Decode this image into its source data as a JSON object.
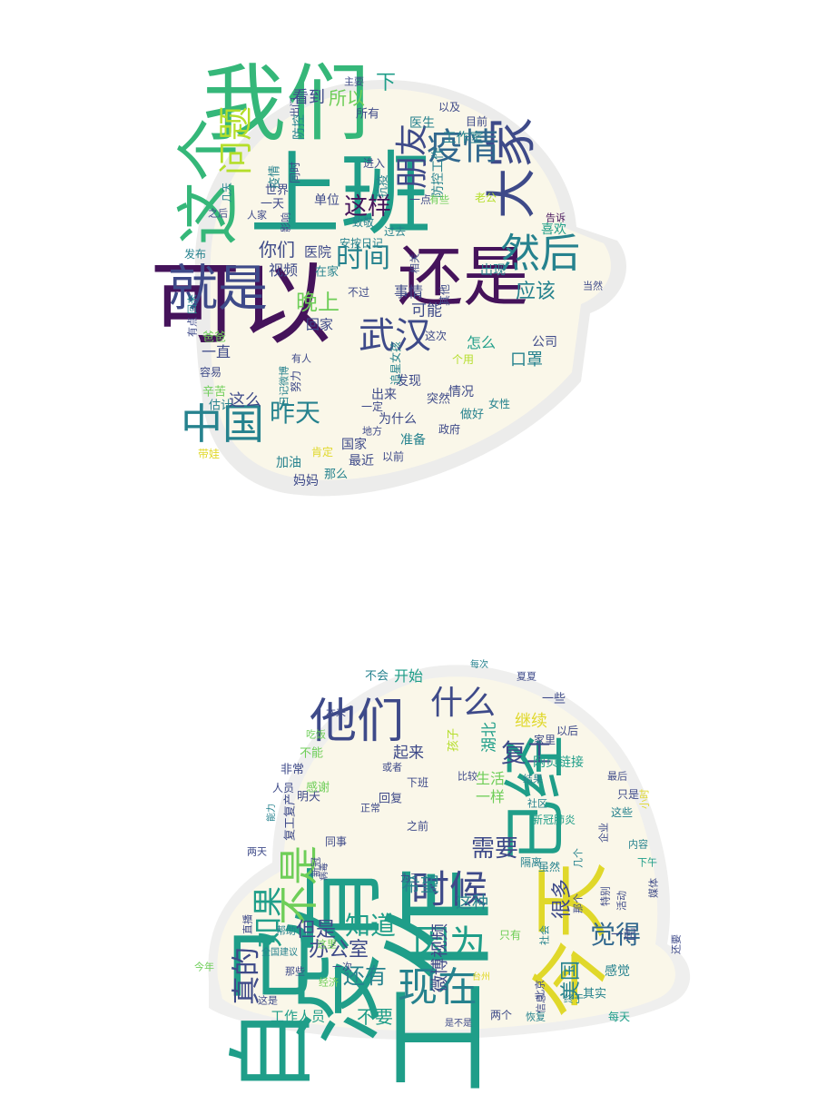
{
  "palette": {
    "dark_purple": "#45135b",
    "indigo": "#3e4a89",
    "blue": "#31688e",
    "teal": "#26828e",
    "sea": "#1f9e89",
    "green": "#35b779",
    "lime": "#6ece58",
    "yellow": "#b5de2b",
    "bright_yellow": "#e0d82a",
    "helmet_fill": "#faf7e9",
    "helmet_shadow": "#e4e4e2"
  },
  "clouds": [
    {
      "name": "top-helmet-cloud",
      "words": [
        {
          "text": "我们",
          "color": "green"
        },
        {
          "text": "上班",
          "color": "sea"
        },
        {
          "text": "可以",
          "color": "dark_purple"
        },
        {
          "text": "这个",
          "color": "green"
        },
        {
          "text": "还是",
          "color": "dark_purple"
        },
        {
          "text": "就是",
          "color": "indigo"
        },
        {
          "text": "大家",
          "color": "indigo"
        },
        {
          "text": "中国",
          "color": "teal"
        },
        {
          "text": "疫情",
          "color": "blue"
        },
        {
          "text": "然后",
          "color": "teal"
        },
        {
          "text": "武汉",
          "color": "indigo"
        },
        {
          "text": "问题",
          "color": "yellow"
        },
        {
          "text": "时间",
          "color": "teal"
        },
        {
          "text": "朋友",
          "color": "indigo"
        },
        {
          "text": "这样",
          "color": "dark_purple"
        },
        {
          "text": "昨天",
          "color": "teal"
        },
        {
          "text": "晚上",
          "color": "lime"
        },
        {
          "text": "所以",
          "color": "lime"
        },
        {
          "text": "下",
          "color": "sea"
        },
        {
          "text": "应该",
          "color": "teal"
        },
        {
          "text": "你们",
          "color": "indigo"
        },
        {
          "text": "看到",
          "color": "indigo"
        },
        {
          "text": "视频",
          "color": "indigo"
        },
        {
          "text": "可能",
          "color": "indigo"
        },
        {
          "text": "事情",
          "color": "indigo"
        },
        {
          "text": "怎么",
          "color": "sea"
        },
        {
          "text": "口罩",
          "color": "teal"
        },
        {
          "text": "一直",
          "color": "indigo"
        },
        {
          "text": "这么",
          "color": "indigo"
        },
        {
          "text": "医院",
          "color": "indigo"
        },
        {
          "text": "单位",
          "color": "indigo"
        },
        {
          "text": "回家",
          "color": "indigo"
        },
        {
          "text": "出现",
          "color": "teal"
        },
        {
          "text": "喜欢",
          "color": "sea"
        },
        {
          "text": "公司",
          "color": "indigo"
        },
        {
          "text": "情况",
          "color": "indigo"
        },
        {
          "text": "发现",
          "color": "indigo"
        },
        {
          "text": "出来",
          "color": "indigo"
        },
        {
          "text": "突然",
          "color": "indigo"
        },
        {
          "text": "为什么",
          "color": "indigo"
        },
        {
          "text": "做好",
          "color": "teal"
        },
        {
          "text": "准备",
          "color": "teal"
        },
        {
          "text": "国家",
          "color": "indigo"
        },
        {
          "text": "加油",
          "color": "teal"
        },
        {
          "text": "妈妈",
          "color": "indigo"
        },
        {
          "text": "那么",
          "color": "teal"
        },
        {
          "text": "最近",
          "color": "indigo"
        },
        {
          "text": "以前",
          "color": "indigo"
        },
        {
          "text": "政府",
          "color": "indigo"
        },
        {
          "text": "女性",
          "color": "teal"
        },
        {
          "text": "工作室",
          "color": "teal"
        },
        {
          "text": "目前",
          "color": "indigo"
        },
        {
          "text": "医生",
          "color": "teal"
        },
        {
          "text": "以及",
          "color": "indigo"
        },
        {
          "text": "所有",
          "color": "indigo"
        },
        {
          "text": "主要",
          "color": "indigo"
        },
        {
          "text": "出门",
          "color": "indigo"
        },
        {
          "text": "世界",
          "color": "indigo"
        },
        {
          "text": "一天",
          "color": "indigo"
        },
        {
          "text": "防控工作",
          "color": "teal"
        },
        {
          "text": "防控",
          "color": "teal"
        },
        {
          "text": "疫情",
          "color": "teal"
        },
        {
          "text": "同时",
          "color": "indigo"
        },
        {
          "text": "进入",
          "color": "indigo"
        },
        {
          "text": "抗疫",
          "color": "teal"
        },
        {
          "text": "一点",
          "color": "indigo"
        },
        {
          "text": "有些",
          "color": "lime"
        },
        {
          "text": "老公",
          "color": "yellow"
        },
        {
          "text": "告诉",
          "color": "dark_purple"
        },
        {
          "text": "致敬",
          "color": "teal"
        },
        {
          "text": "过去",
          "color": "teal"
        },
        {
          "text": "安按日记",
          "color": "teal"
        },
        {
          "text": "相关",
          "color": "indigo"
        },
        {
          "text": "在家",
          "color": "teal"
        },
        {
          "text": "不过",
          "color": "indigo"
        },
        {
          "text": "其他",
          "color": "indigo"
        },
        {
          "text": "这次",
          "color": "indigo"
        },
        {
          "text": "个用",
          "color": "yellow"
        },
        {
          "text": "追星女孩",
          "color": "teal"
        },
        {
          "text": "有人",
          "color": "indigo"
        },
        {
          "text": "努力",
          "color": "indigo"
        },
        {
          "text": "日记微博",
          "color": "teal"
        },
        {
          "text": "一定",
          "color": "indigo"
        },
        {
          "text": "地方",
          "color": "indigo"
        },
        {
          "text": "肯定",
          "color": "bright_yellow"
        },
        {
          "text": "带娃",
          "color": "bright_yellow"
        },
        {
          "text": "估计",
          "color": "teal"
        },
        {
          "text": "辛苦",
          "color": "lime"
        },
        {
          "text": "容易",
          "color": "indigo"
        },
        {
          "text": "爸爸",
          "color": "lime"
        },
        {
          "text": "有点",
          "color": "indigo"
        },
        {
          "text": "回来",
          "color": "teal"
        },
        {
          "text": "发布",
          "color": "teal"
        },
        {
          "text": "之后",
          "color": "indigo"
        },
        {
          "text": "几天",
          "color": "teal"
        },
        {
          "text": "人家",
          "color": "indigo"
        },
        {
          "text": "影响",
          "color": "indigo"
        },
        {
          "text": "当然",
          "color": "indigo"
        }
      ]
    },
    {
      "name": "bottom-helmet-cloud",
      "words": [
        {
          "text": "工作",
          "color": "sea"
        },
        {
          "text": "没有",
          "color": "sea"
        },
        {
          "text": "今天",
          "color": "bright_yellow"
        },
        {
          "text": "自己",
          "color": "sea"
        },
        {
          "text": "已经",
          "color": "sea"
        },
        {
          "text": "他们",
          "color": "indigo"
        },
        {
          "text": "现在",
          "color": "teal"
        },
        {
          "text": "时候",
          "color": "indigo"
        },
        {
          "text": "不是",
          "color": "lime"
        },
        {
          "text": "因为",
          "color": "sea"
        },
        {
          "text": "什么",
          "color": "indigo"
        },
        {
          "text": "需要",
          "color": "indigo"
        },
        {
          "text": "觉得",
          "color": "blue"
        },
        {
          "text": "如果",
          "color": "sea"
        },
        {
          "text": "真的",
          "color": "indigo"
        },
        {
          "text": "复工",
          "color": "indigo"
        },
        {
          "text": "知道",
          "color": "sea"
        },
        {
          "text": "还有",
          "color": "teal"
        },
        {
          "text": "希望",
          "color": "teal"
        },
        {
          "text": "美国",
          "color": "teal"
        },
        {
          "text": "但是",
          "color": "indigo"
        },
        {
          "text": "办公室",
          "color": "indigo"
        },
        {
          "text": "微博视频",
          "color": "indigo"
        },
        {
          "text": "很多",
          "color": "indigo"
        },
        {
          "text": "不要",
          "color": "sea"
        },
        {
          "text": "这种",
          "color": "teal"
        },
        {
          "text": "起来",
          "color": "indigo"
        },
        {
          "text": "湖北",
          "color": "sea"
        },
        {
          "text": "生活",
          "color": "lime"
        },
        {
          "text": "一样",
          "color": "lime"
        },
        {
          "text": "继续",
          "color": "bright_yellow"
        },
        {
          "text": "开始",
          "color": "sea"
        },
        {
          "text": "不会",
          "color": "teal"
        },
        {
          "text": "一些",
          "color": "indigo"
        },
        {
          "text": "以后",
          "color": "indigo"
        },
        {
          "text": "网页链接",
          "color": "sea"
        },
        {
          "text": "家里",
          "color": "indigo"
        },
        {
          "text": "一起",
          "color": "indigo"
        },
        {
          "text": "感觉",
          "color": "teal"
        },
        {
          "text": "其实",
          "color": "teal"
        },
        {
          "text": "每天",
          "color": "sea"
        },
        {
          "text": "两个",
          "color": "indigo"
        },
        {
          "text": "工作人员",
          "color": "sea"
        },
        {
          "text": "明天",
          "color": "indigo"
        },
        {
          "text": "回复",
          "color": "indigo"
        },
        {
          "text": "非常",
          "color": "indigo"
        },
        {
          "text": "不能",
          "color": "lime"
        },
        {
          "text": "吃饭",
          "color": "lime"
        },
        {
          "text": "感谢",
          "color": "lime"
        },
        {
          "text": "人员",
          "color": "indigo"
        },
        {
          "text": "复工复产",
          "color": "indigo"
        },
        {
          "text": "正常",
          "color": "indigo"
        },
        {
          "text": "同事",
          "color": "indigo"
        },
        {
          "text": "之前",
          "color": "indigo"
        },
        {
          "text": "隔离",
          "color": "teal"
        },
        {
          "text": "虽然",
          "color": "teal"
        },
        {
          "text": "下班",
          "color": "indigo"
        },
        {
          "text": "比较",
          "color": "indigo"
        },
        {
          "text": "结果",
          "color": "teal"
        },
        {
          "text": "社区",
          "color": "teal"
        },
        {
          "text": "最后",
          "color": "indigo"
        },
        {
          "text": "只是",
          "color": "indigo"
        },
        {
          "text": "这些",
          "color": "teal"
        },
        {
          "text": "小时",
          "color": "bright_yellow"
        },
        {
          "text": "新冠肺炎",
          "color": "sea"
        },
        {
          "text": "企业",
          "color": "indigo"
        },
        {
          "text": "内容",
          "color": "teal"
        },
        {
          "text": "下午",
          "color": "sea"
        },
        {
          "text": "几个",
          "color": "teal"
        },
        {
          "text": "那个",
          "color": "indigo"
        },
        {
          "text": "特别",
          "color": "indigo"
        },
        {
          "text": "活动",
          "color": "indigo"
        },
        {
          "text": "媒体",
          "color": "indigo"
        },
        {
          "text": "还要",
          "color": "indigo"
        },
        {
          "text": "或者",
          "color": "indigo"
        },
        {
          "text": "孩子",
          "color": "yellow"
        },
        {
          "text": "夏夏",
          "color": "indigo"
        },
        {
          "text": "每次",
          "color": "teal"
        },
        {
          "text": "本来",
          "color": "indigo"
        },
        {
          "text": "两天",
          "color": "indigo"
        },
        {
          "text": "能力",
          "color": "teal"
        },
        {
          "text": "病毒",
          "color": "indigo"
        },
        {
          "text": "新冠",
          "color": "indigo"
        },
        {
          "text": "为了",
          "color": "indigo"
        },
        {
          "text": "直播",
          "color": "indigo"
        },
        {
          "text": "帮助",
          "color": "teal"
        },
        {
          "text": "全国建议",
          "color": "teal"
        },
        {
          "text": "这里",
          "color": "lime"
        },
        {
          "text": "只有",
          "color": "lime"
        },
        {
          "text": "一次",
          "color": "indigo"
        },
        {
          "text": "今年",
          "color": "lime"
        },
        {
          "text": "那些",
          "color": "indigo"
        },
        {
          "text": "经济",
          "color": "lime"
        },
        {
          "text": "这是",
          "color": "indigo"
        },
        {
          "text": "信息",
          "color": "indigo"
        },
        {
          "text": "北京",
          "color": "indigo"
        },
        {
          "text": "台州",
          "color": "bright_yellow"
        },
        {
          "text": "社会",
          "color": "teal"
        },
        {
          "text": "恢复",
          "color": "teal"
        },
        {
          "text": "终于",
          "color": "teal"
        },
        {
          "text": "是不是",
          "color": "indigo"
        }
      ]
    }
  ]
}
